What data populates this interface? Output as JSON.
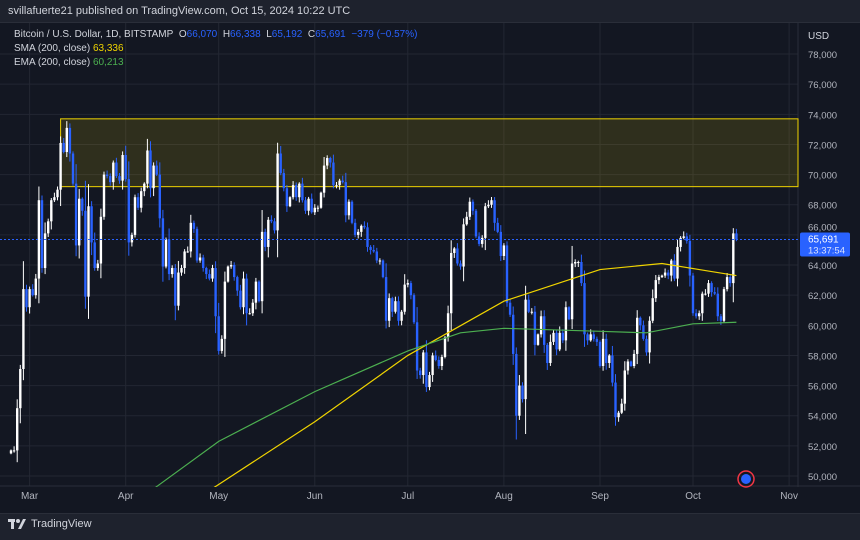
{
  "header": "svillafuerte21 published on TradingView.com, Oct 15, 2024 10:22 UTC",
  "legend": {
    "symbol": "Bitcoin / U.S. Dollar, 1D, BITSTAMP",
    "o_label": "O",
    "o": "66,070",
    "h_label": "H",
    "h": "66,338",
    "l_label": "L",
    "l": "65,192",
    "c_label": "C",
    "c": "65,691",
    "change": "−379 (−0.57%)",
    "sma_label": "SMA (200, close)",
    "sma": "63,336",
    "ema_label": "EMA (200, close)",
    "ema": "60,213"
  },
  "footer": {
    "brand": "TradingView"
  },
  "colors": {
    "up": "#ffffff",
    "down": "#2962ff",
    "sma": "#f0d400",
    "ema": "#4caf50",
    "zone": "#f0d400",
    "price_tag": "#2962ff"
  },
  "chart_data": {
    "type": "candlestick",
    "currency": "USD",
    "ylim": [
      49000,
      79000
    ],
    "yticks": [
      50000,
      52000,
      54000,
      56000,
      58000,
      60000,
      62000,
      64000,
      66000,
      68000,
      70000,
      72000,
      74000,
      76000,
      78000
    ],
    "ytick_labels": [
      "50,000",
      "52,000",
      "54,000",
      "56,000",
      "58,000",
      "60,000",
      "62,000",
      "64,000",
      "66,000",
      "68,000",
      "70,000",
      "72,000",
      "74,000",
      "76,000",
      "78,000"
    ],
    "xticks": [
      {
        "day": 6,
        "label": "Mar"
      },
      {
        "day": 37,
        "label": "Apr"
      },
      {
        "day": 67,
        "label": "May"
      },
      {
        "day": 98,
        "label": "Jun"
      },
      {
        "day": 128,
        "label": "Jul"
      },
      {
        "day": 159,
        "label": "Aug"
      },
      {
        "day": 190,
        "label": "Sep"
      },
      {
        "day": 220,
        "label": "Oct"
      },
      {
        "day": 251,
        "label": "Nov"
      }
    ],
    "start_date": "Feb 24",
    "first_open": 51.5,
    "closes_k": [
      51.7,
      51.7,
      54.5,
      57.1,
      62.4,
      61.2,
      62.4,
      62.0,
      63.1,
      68.3,
      63.8,
      66.1,
      66.9,
      68.3,
      68.5,
      69.0,
      72.1,
      71.5,
      73.1,
      71.4,
      69.4,
      65.3,
      68.4,
      67.6,
      61.9,
      67.9,
      65.5,
      63.8,
      64.1,
      67.2,
      70.0,
      69.9,
      69.5,
      70.8,
      69.9,
      69.6,
      71.3,
      69.7,
      65.5,
      66.0,
      68.5,
      67.8,
      68.9,
      69.4,
      71.6,
      69.1,
      70.6,
      70.0,
      67.1,
      63.9,
      65.7,
      63.4,
      63.8,
      61.3,
      63.5,
      63.8,
      64.9,
      64.9,
      66.8,
      66.4,
      64.3,
      64.5,
      63.8,
      63.4,
      63.1,
      63.8,
      60.6,
      58.3,
      59.1,
      62.9,
      63.9,
      64.0,
      63.2,
      62.3,
      61.2,
      63.1,
      60.8,
      60.8,
      61.5,
      62.9,
      61.6,
      66.2,
      65.2,
      67.0,
      66.9,
      66.3,
      71.4,
      70.1,
      69.1,
      67.9,
      68.5,
      69.3,
      68.5,
      69.4,
      68.3,
      67.6,
      68.4,
      67.5,
      67.8,
      67.8,
      68.8,
      70.6,
      71.1,
      70.8,
      69.3,
      69.3,
      69.6,
      69.5,
      67.3,
      68.2,
      66.8,
      66.0,
      66.2,
      66.6,
      66.5,
      65.2,
      65.0,
      64.9,
      64.3,
      64.3,
      63.2,
      60.3,
      61.8,
      60.9,
      61.6,
      60.3,
      60.9,
      62.7,
      62.8,
      62.0,
      60.2,
      57.0,
      56.7,
      58.2,
      55.9,
      56.7,
      58.0,
      57.7,
      57.3,
      57.9,
      59.2,
      60.8,
      64.8,
      65.1,
      64.1,
      63.9,
      66.7,
      67.2,
      68.2,
      67.6,
      65.9,
      65.4,
      65.8,
      67.9,
      68.0,
      68.3,
      66.8,
      66.2,
      64.6,
      65.3,
      61.5,
      60.7,
      58.1,
      54.0,
      56.0,
      55.1,
      61.7,
      60.9,
      60.9,
      58.7,
      59.4,
      60.6,
      58.7,
      57.5,
      58.9,
      59.5,
      58.4,
      59.5,
      59.0,
      61.2,
      60.4,
      64.1,
      64.2,
      64.2,
      62.8,
      59.4,
      59.0,
      59.4,
      59.1,
      58.9,
      57.3,
      59.1,
      57.5,
      58.0,
      56.2,
      53.9,
      54.2,
      54.8,
      57.0,
      57.6,
      57.3,
      58.1,
      60.5,
      60.0,
      59.1,
      58.2,
      60.3,
      61.8,
      63.0,
      63.2,
      63.3,
      63.5,
      63.3,
      64.3,
      63.1,
      65.2,
      65.8,
      65.9,
      65.6,
      63.3,
      60.8,
      60.6,
      60.8,
      62.1,
      62.1,
      62.8,
      62.2,
      62.1,
      60.6,
      60.3,
      62.4,
      63.2,
      62.8,
      66.1,
      65.7
    ],
    "sma_points": [
      [
        60,
        48.5
      ],
      [
        98,
        53.6
      ],
      [
        128,
        58.0
      ],
      [
        159,
        61.6
      ],
      [
        190,
        63.7
      ],
      [
        210,
        64.1
      ],
      [
        225,
        63.6
      ],
      [
        234,
        63.3
      ]
    ],
    "ema_points": [
      [
        45,
        49.0
      ],
      [
        67,
        52.3
      ],
      [
        98,
        55.6
      ],
      [
        128,
        58.3
      ],
      [
        145,
        59.5
      ],
      [
        159,
        59.8
      ],
      [
        190,
        59.6
      ],
      [
        205,
        59.5
      ],
      [
        220,
        60.1
      ],
      [
        234,
        60.2
      ]
    ],
    "resistance_zone": {
      "low": 69200,
      "high": 73700,
      "from_day": 16
    },
    "last_price": {
      "value": 65691,
      "label": "65,691",
      "countdown": "13:37:54"
    }
  }
}
